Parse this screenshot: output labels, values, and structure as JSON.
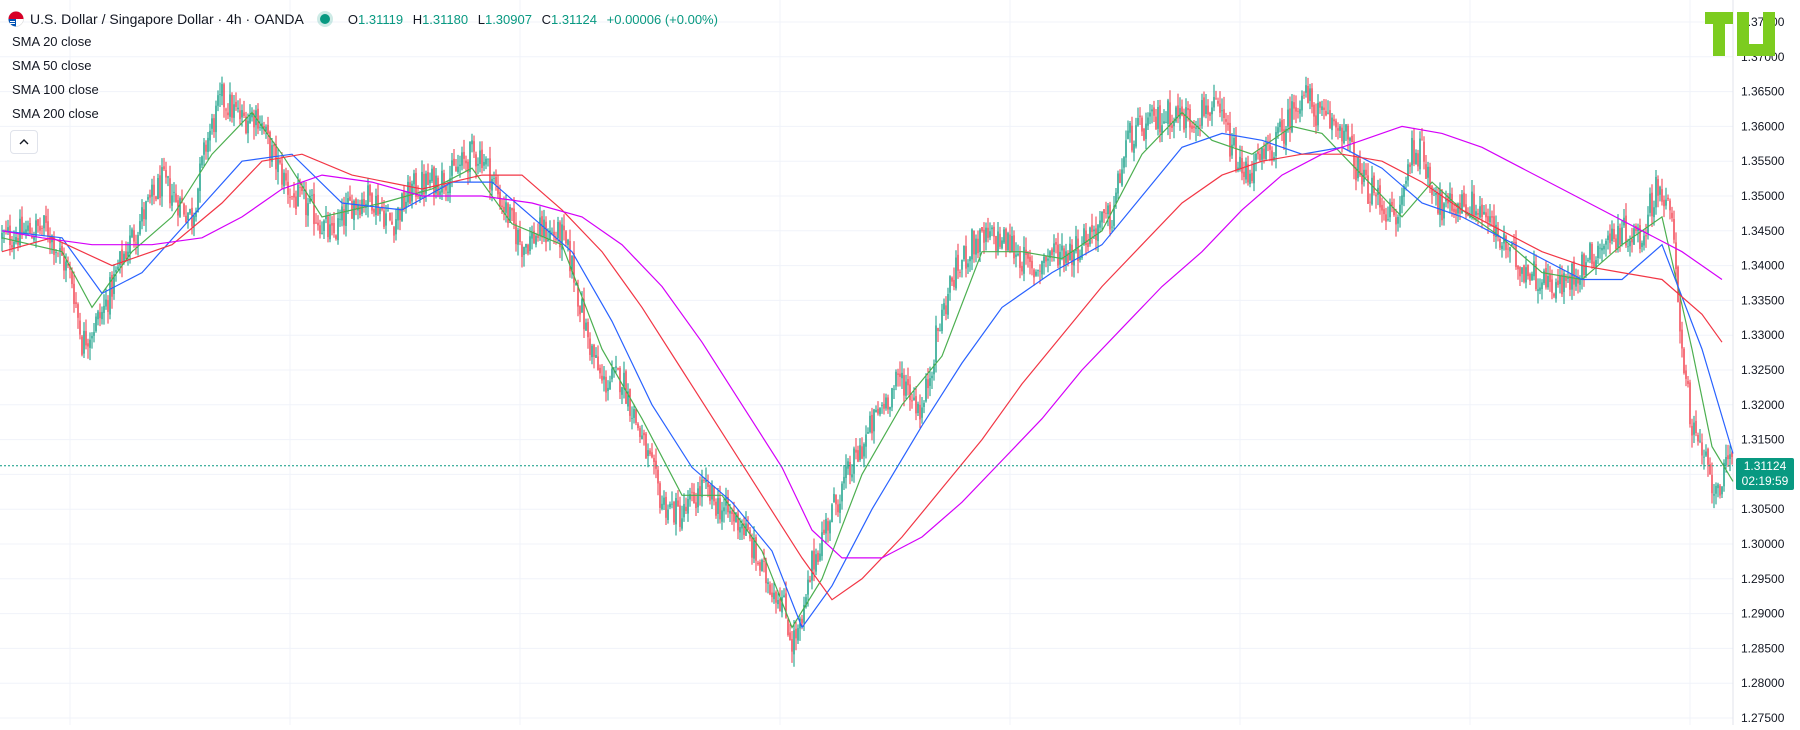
{
  "header": {
    "symbol_title": "U.S. Dollar / Singapore Dollar · 4h · OANDA",
    "open_label": "O",
    "open": "1.31119",
    "high_label": "H",
    "high": "1.31180",
    "low_label": "L",
    "low": "1.30907",
    "close_label": "C",
    "close": "1.31124",
    "change": "+0.00006 (+0.00%)"
  },
  "indicators": [
    {
      "label": "SMA 20 close",
      "color": "#4caf50"
    },
    {
      "label": "SMA 50 close",
      "color": "#2962ff"
    },
    {
      "label": "SMA 100 close",
      "color": "#f23645"
    },
    {
      "label": "SMA 200 close",
      "color": "#d500f9"
    }
  ],
  "price_tag": {
    "price": "1.31124",
    "countdown": "02:19:59"
  },
  "colors": {
    "up": "#089981",
    "down": "#f23645",
    "grid": "#f0f3fa",
    "axis_text": "#131722"
  },
  "icons": {
    "collapse": "chevron-up-icon",
    "flag": "usd-sgd-flag-icon",
    "logo": "tu-logo-icon"
  },
  "chart_data": {
    "type": "candlestick",
    "title": "U.S. Dollar / Singapore Dollar · 4h · OANDA",
    "ylim": [
      1.275,
      1.377
    ],
    "y_ticks": [
      "1.27500",
      "1.28000",
      "1.28500",
      "1.29000",
      "1.29500",
      "1.30000",
      "1.30500",
      "1.31000",
      "1.31500",
      "1.32000",
      "1.32500",
      "1.33000",
      "1.33500",
      "1.34000",
      "1.34500",
      "1.35000",
      "1.35500",
      "1.36000",
      "1.36500",
      "1.37000",
      "1.37500"
    ],
    "grid": true,
    "last_price": 1.31124,
    "close_path": [
      [
        0,
        1.344
      ],
      [
        45,
        1.3455
      ],
      [
        70,
        1.338
      ],
      [
        80,
        1.329
      ],
      [
        100,
        1.333
      ],
      [
        120,
        1.341
      ],
      [
        140,
        1.347
      ],
      [
        160,
        1.352
      ],
      [
        190,
        1.347
      ],
      [
        205,
        1.358
      ],
      [
        220,
        1.364
      ],
      [
        240,
        1.361
      ],
      [
        255,
        1.362
      ],
      [
        270,
        1.356
      ],
      [
        290,
        1.35
      ],
      [
        310,
        1.348
      ],
      [
        330,
        1.344
      ],
      [
        350,
        1.349
      ],
      [
        370,
        1.35
      ],
      [
        390,
        1.346
      ],
      [
        410,
        1.351
      ],
      [
        430,
        1.352
      ],
      [
        450,
        1.353
      ],
      [
        470,
        1.356
      ],
      [
        480,
        1.356
      ],
      [
        500,
        1.349
      ],
      [
        520,
        1.343
      ],
      [
        540,
        1.345
      ],
      [
        560,
        1.344
      ],
      [
        570,
        1.34
      ],
      [
        585,
        1.33
      ],
      [
        600,
        1.323
      ],
      [
        620,
        1.324
      ],
      [
        640,
        1.315
      ],
      [
        660,
        1.306
      ],
      [
        680,
        1.304
      ],
      [
        700,
        1.308
      ],
      [
        720,
        1.305
      ],
      [
        740,
        1.303
      ],
      [
        760,
        1.296
      ],
      [
        780,
        1.292
      ],
      [
        790,
        1.286
      ],
      [
        800,
        1.288
      ],
      [
        810,
        1.297
      ],
      [
        825,
        1.303
      ],
      [
        840,
        1.308
      ],
      [
        860,
        1.314
      ],
      [
        880,
        1.32
      ],
      [
        900,
        1.324
      ],
      [
        920,
        1.319
      ],
      [
        935,
        1.33
      ],
      [
        950,
        1.338
      ],
      [
        970,
        1.343
      ],
      [
        990,
        1.344
      ],
      [
        1010,
        1.343
      ],
      [
        1030,
        1.339
      ],
      [
        1050,
        1.342
      ],
      [
        1070,
        1.342
      ],
      [
        1090,
        1.345
      ],
      [
        1110,
        1.347
      ],
      [
        1125,
        1.358
      ],
      [
        1145,
        1.36
      ],
      [
        1170,
        1.362
      ],
      [
        1190,
        1.361
      ],
      [
        1205,
        1.363
      ],
      [
        1220,
        1.361
      ],
      [
        1240,
        1.353
      ],
      [
        1260,
        1.355
      ],
      [
        1280,
        1.359
      ],
      [
        1300,
        1.365
      ],
      [
        1320,
        1.361
      ],
      [
        1340,
        1.36
      ],
      [
        1360,
        1.352
      ],
      [
        1380,
        1.349
      ],
      [
        1395,
        1.346
      ],
      [
        1410,
        1.357
      ],
      [
        1420,
        1.356
      ],
      [
        1440,
        1.348
      ],
      [
        1460,
        1.349
      ],
      [
        1480,
        1.348
      ],
      [
        1500,
        1.343
      ],
      [
        1520,
        1.34
      ],
      [
        1540,
        1.338
      ],
      [
        1560,
        1.337
      ],
      [
        1580,
        1.34
      ],
      [
        1600,
        1.343
      ],
      [
        1620,
        1.345
      ],
      [
        1640,
        1.344
      ],
      [
        1655,
        1.352
      ],
      [
        1670,
        1.346
      ],
      [
        1680,
        1.329
      ],
      [
        1690,
        1.316
      ],
      [
        1700,
        1.313
      ],
      [
        1712,
        1.308
      ],
      [
        1722,
        1.31
      ],
      [
        1731,
        1.3112
      ]
    ],
    "series": [
      {
        "name": "SMA 20 close",
        "path": [
          [
            0,
            1.344
          ],
          [
            60,
            1.342
          ],
          [
            90,
            1.334
          ],
          [
            130,
            1.342
          ],
          [
            170,
            1.347
          ],
          [
            210,
            1.356
          ],
          [
            250,
            1.362
          ],
          [
            280,
            1.356
          ],
          [
            320,
            1.347
          ],
          [
            380,
            1.349
          ],
          [
            430,
            1.351
          ],
          [
            470,
            1.354
          ],
          [
            510,
            1.346
          ],
          [
            560,
            1.343
          ],
          [
            600,
            1.328
          ],
          [
            640,
            1.318
          ],
          [
            680,
            1.307
          ],
          [
            720,
            1.307
          ],
          [
            760,
            1.299
          ],
          [
            790,
            1.288
          ],
          [
            820,
            1.295
          ],
          [
            860,
            1.31
          ],
          [
            900,
            1.32
          ],
          [
            940,
            1.327
          ],
          [
            980,
            1.342
          ],
          [
            1020,
            1.342
          ],
          [
            1060,
            1.341
          ],
          [
            1100,
            1.345
          ],
          [
            1140,
            1.356
          ],
          [
            1180,
            1.362
          ],
          [
            1210,
            1.358
          ],
          [
            1250,
            1.356
          ],
          [
            1290,
            1.36
          ],
          [
            1320,
            1.359
          ],
          [
            1360,
            1.353
          ],
          [
            1400,
            1.347
          ],
          [
            1430,
            1.352
          ],
          [
            1460,
            1.348
          ],
          [
            1500,
            1.344
          ],
          [
            1540,
            1.339
          ],
          [
            1580,
            1.338
          ],
          [
            1620,
            1.343
          ],
          [
            1660,
            1.347
          ],
          [
            1690,
            1.328
          ],
          [
            1710,
            1.314
          ],
          [
            1731,
            1.309
          ]
        ]
      },
      {
        "name": "SMA 50 close",
        "path": [
          [
            0,
            1.345
          ],
          [
            60,
            1.344
          ],
          [
            100,
            1.336
          ],
          [
            140,
            1.339
          ],
          [
            190,
            1.347
          ],
          [
            240,
            1.355
          ],
          [
            290,
            1.356
          ],
          [
            340,
            1.349
          ],
          [
            400,
            1.348
          ],
          [
            450,
            1.352
          ],
          [
            490,
            1.352
          ],
          [
            530,
            1.347
          ],
          [
            570,
            1.342
          ],
          [
            610,
            1.332
          ],
          [
            650,
            1.32
          ],
          [
            690,
            1.311
          ],
          [
            730,
            1.306
          ],
          [
            770,
            1.299
          ],
          [
            800,
            1.288
          ],
          [
            830,
            1.294
          ],
          [
            870,
            1.305
          ],
          [
            920,
            1.317
          ],
          [
            960,
            1.326
          ],
          [
            1000,
            1.334
          ],
          [
            1050,
            1.339
          ],
          [
            1100,
            1.343
          ],
          [
            1140,
            1.35
          ],
          [
            1180,
            1.357
          ],
          [
            1220,
            1.359
          ],
          [
            1260,
            1.358
          ],
          [
            1300,
            1.356
          ],
          [
            1340,
            1.357
          ],
          [
            1380,
            1.354
          ],
          [
            1420,
            1.349
          ],
          [
            1460,
            1.347
          ],
          [
            1500,
            1.344
          ],
          [
            1540,
            1.341
          ],
          [
            1580,
            1.338
          ],
          [
            1620,
            1.338
          ],
          [
            1660,
            1.343
          ],
          [
            1700,
            1.328
          ],
          [
            1731,
            1.313
          ]
        ]
      },
      {
        "name": "SMA 100 close",
        "path": [
          [
            0,
            1.342
          ],
          [
            50,
            1.344
          ],
          [
            110,
            1.34
          ],
          [
            170,
            1.343
          ],
          [
            220,
            1.349
          ],
          [
            260,
            1.355
          ],
          [
            300,
            1.356
          ],
          [
            350,
            1.353
          ],
          [
            420,
            1.351
          ],
          [
            480,
            1.353
          ],
          [
            520,
            1.353
          ],
          [
            560,
            1.348
          ],
          [
            600,
            1.342
          ],
          [
            640,
            1.334
          ],
          [
            680,
            1.325
          ],
          [
            720,
            1.316
          ],
          [
            760,
            1.307
          ],
          [
            800,
            1.298
          ],
          [
            830,
            1.292
          ],
          [
            860,
            1.295
          ],
          [
            900,
            1.301
          ],
          [
            940,
            1.308
          ],
          [
            980,
            1.315
          ],
          [
            1020,
            1.323
          ],
          [
            1060,
            1.33
          ],
          [
            1100,
            1.337
          ],
          [
            1140,
            1.343
          ],
          [
            1180,
            1.349
          ],
          [
            1220,
            1.353
          ],
          [
            1260,
            1.355
          ],
          [
            1300,
            1.356
          ],
          [
            1340,
            1.356
          ],
          [
            1380,
            1.355
          ],
          [
            1420,
            1.352
          ],
          [
            1460,
            1.348
          ],
          [
            1500,
            1.345
          ],
          [
            1540,
            1.342
          ],
          [
            1580,
            1.34
          ],
          [
            1620,
            1.339
          ],
          [
            1660,
            1.338
          ],
          [
            1700,
            1.333
          ],
          [
            1720,
            1.329
          ]
        ]
      },
      {
        "name": "SMA 200 close",
        "path": [
          [
            0,
            1.345
          ],
          [
            40,
            1.344
          ],
          [
            90,
            1.343
          ],
          [
            150,
            1.343
          ],
          [
            200,
            1.344
          ],
          [
            240,
            1.347
          ],
          [
            280,
            1.351
          ],
          [
            320,
            1.353
          ],
          [
            370,
            1.352
          ],
          [
            420,
            1.35
          ],
          [
            480,
            1.35
          ],
          [
            530,
            1.349
          ],
          [
            580,
            1.347
          ],
          [
            620,
            1.343
          ],
          [
            660,
            1.337
          ],
          [
            700,
            1.329
          ],
          [
            740,
            1.32
          ],
          [
            780,
            1.311
          ],
          [
            810,
            1.302
          ],
          [
            840,
            1.298
          ],
          [
            880,
            1.298
          ],
          [
            920,
            1.301
          ],
          [
            960,
            1.306
          ],
          [
            1000,
            1.312
          ],
          [
            1040,
            1.318
          ],
          [
            1080,
            1.325
          ],
          [
            1120,
            1.331
          ],
          [
            1160,
            1.337
          ],
          [
            1200,
            1.342
          ],
          [
            1240,
            1.348
          ],
          [
            1280,
            1.353
          ],
          [
            1320,
            1.356
          ],
          [
            1360,
            1.358
          ],
          [
            1400,
            1.36
          ],
          [
            1440,
            1.359
          ],
          [
            1480,
            1.357
          ],
          [
            1520,
            1.354
          ],
          [
            1560,
            1.351
          ],
          [
            1600,
            1.348
          ],
          [
            1640,
            1.345
          ],
          [
            1680,
            1.342
          ],
          [
            1720,
            1.338
          ]
        ]
      }
    ]
  }
}
